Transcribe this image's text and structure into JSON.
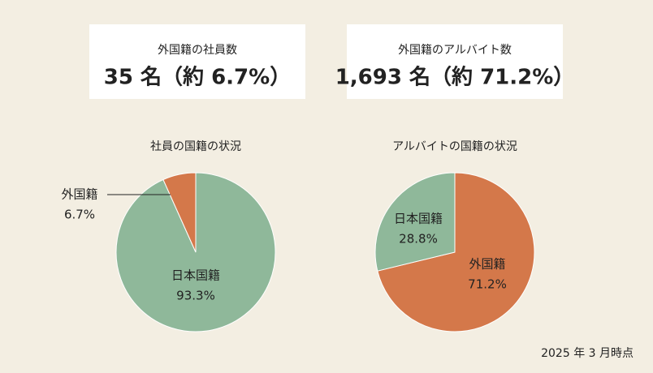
{
  "stats": [
    {
      "label": "外国籍の社員数",
      "value": "35 名（約 6.7%）"
    },
    {
      "label": "外国籍のアルバイト数",
      "value": "1,693 名（約 71.2%）"
    }
  ],
  "chart_data": [
    {
      "type": "pie",
      "title": "社員の国籍の状況",
      "categories": [
        "日本国籍",
        "外国籍"
      ],
      "values": [
        93.3,
        6.7
      ],
      "value_labels": [
        "93.3%",
        "6.7%"
      ],
      "colors": [
        "#8fb89a",
        "#d4784a"
      ]
    },
    {
      "type": "pie",
      "title": "アルバイトの国籍の状況",
      "categories": [
        "外国籍",
        "日本国籍"
      ],
      "values": [
        71.2,
        28.8
      ],
      "value_labels": [
        "71.2%",
        "28.8%"
      ],
      "colors": [
        "#d4784a",
        "#8fb89a"
      ]
    }
  ],
  "footnote": "2025 年 3 月時点"
}
